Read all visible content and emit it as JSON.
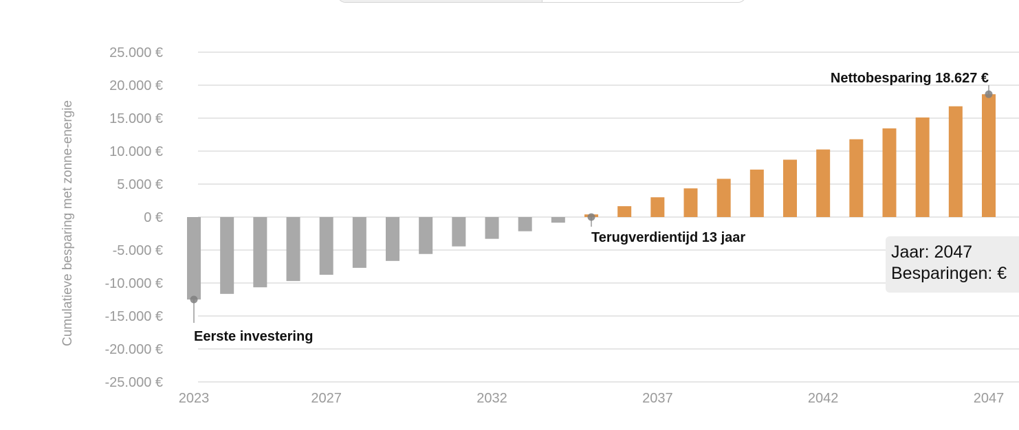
{
  "toggle": {
    "options": [
      "",
      ""
    ]
  },
  "chart_data": {
    "type": "bar",
    "ylabel": "Cumulatieve besparing met zonne-energie",
    "xlabel": "",
    "ylim": [
      -25000,
      25000
    ],
    "yticks": [
      25000,
      20000,
      15000,
      10000,
      5000,
      0,
      -5000,
      -10000,
      -15000,
      -20000,
      -25000
    ],
    "ytick_labels": [
      "25.000 €",
      "20.000 €",
      "15.000 €",
      "10.000 €",
      "5.000 €",
      "0 €",
      "-5.000 €",
      "-10.000 €",
      "-15.000 €",
      "-20.000 €",
      "-25.000 €"
    ],
    "xtick_labels": [
      "2023",
      "2027",
      "2032",
      "2037",
      "2042",
      "2047"
    ],
    "categories": [
      2023,
      2024,
      2025,
      2026,
      2027,
      2028,
      2029,
      2030,
      2031,
      2032,
      2033,
      2034,
      2035,
      2036,
      2037,
      2038,
      2039,
      2040,
      2041,
      2042,
      2043,
      2044,
      2045,
      2046,
      2047
    ],
    "values": [
      -12500,
      -11650,
      -10650,
      -9700,
      -8750,
      -7700,
      -6650,
      -5600,
      -4450,
      -3300,
      -2150,
      -850,
      400,
      1650,
      3000,
      4350,
      5800,
      7200,
      8700,
      10250,
      11800,
      13450,
      15100,
      16800,
      18627
    ],
    "colors": {
      "negative": "#a9a9a9",
      "positive": "#e0964c",
      "grid": "#dddddd",
      "marker": "#808080"
    },
    "grid": true,
    "annotations": [
      {
        "year": 2023,
        "value": -12500,
        "text": "Eerste investering"
      },
      {
        "year": 2035,
        "value": 0,
        "text": "Terugverdientijd 13 jaar"
      },
      {
        "year": 2047,
        "value": 18627,
        "text": "Nettobesparing 18.627 €"
      }
    ]
  },
  "tooltip": {
    "line1": "Jaar: 2047",
    "line2": "Besparingen: €"
  }
}
